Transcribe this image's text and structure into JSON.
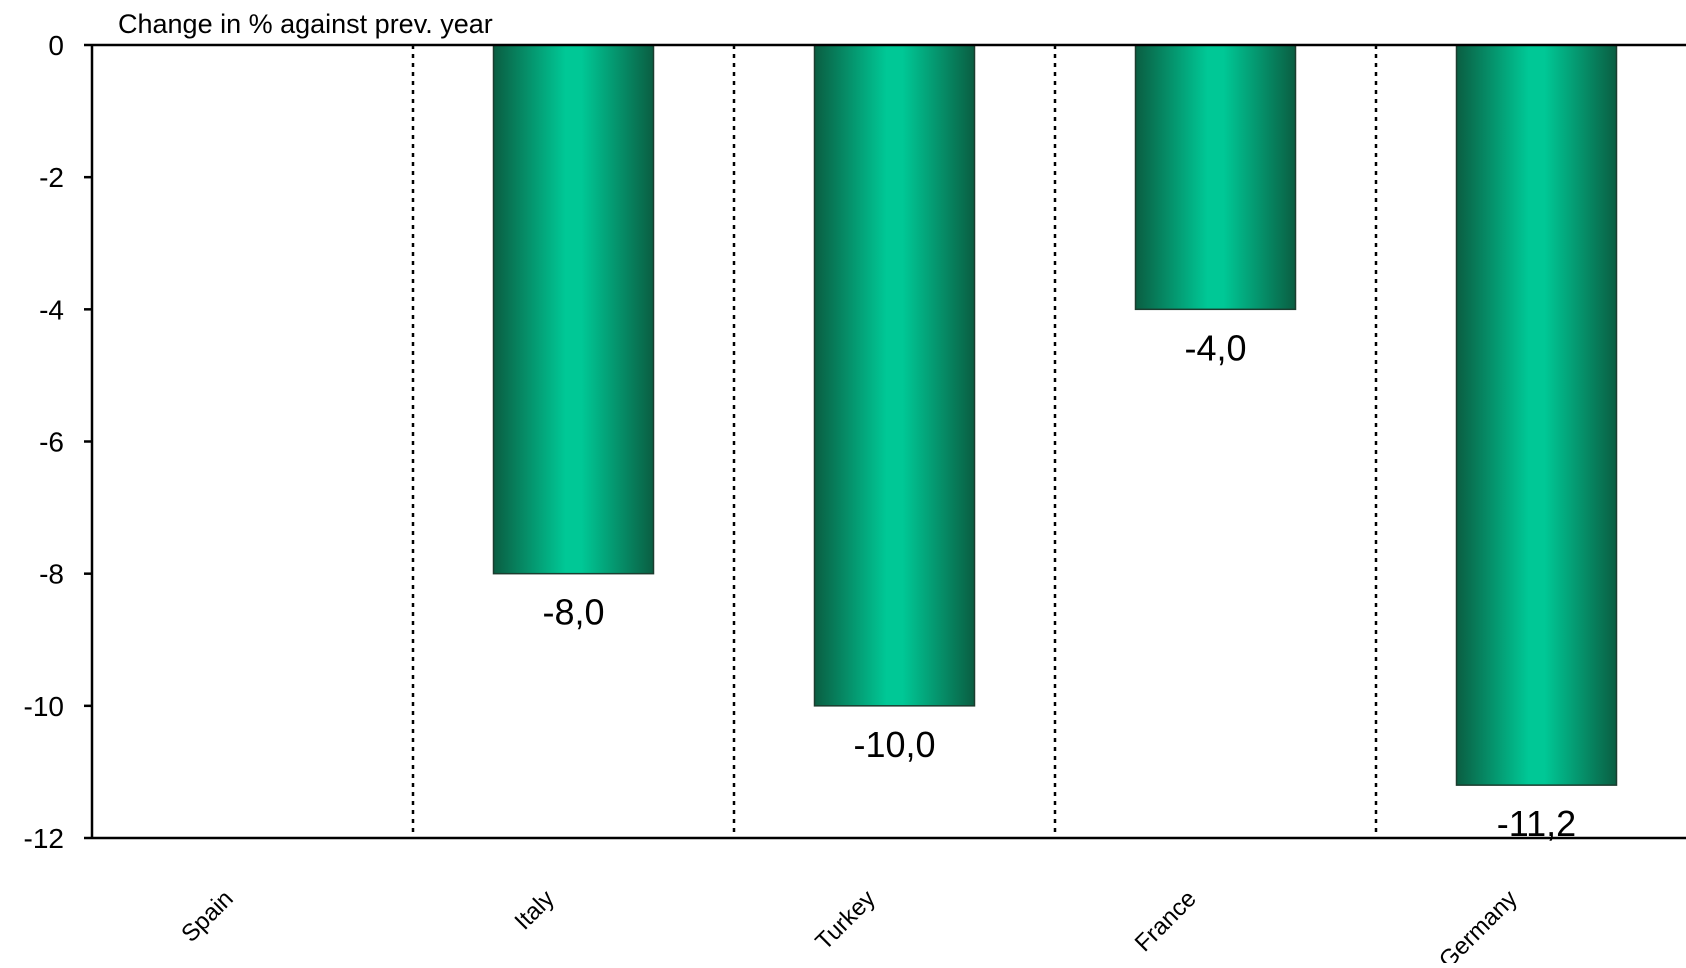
{
  "chart_data": {
    "type": "bar",
    "title": "",
    "ylabel": "Change in % against prev. year",
    "xlabel": "",
    "categories": [
      "Spain",
      "Italy",
      "Turkey",
      "France",
      "Germany"
    ],
    "series": [
      {
        "values": [
          0,
          -8.0,
          -10.0,
          -4.0,
          -11.2
        ]
      }
    ],
    "data_labels": [
      "",
      "-8,0",
      "-10,0",
      "-4,0",
      "-11,2"
    ],
    "ylim": [
      -12,
      0
    ],
    "yticks": [
      0,
      -2,
      -4,
      -6,
      -8,
      -10,
      -12
    ],
    "ytick_labels": [
      "0",
      "-2",
      "-4",
      "-6",
      "-8",
      "-10",
      "-12"
    ],
    "grid": "dotted vertical separators between categories",
    "legend": "none",
    "colors": {
      "bar_edge": "#0a5e42",
      "bar_center": "#00c896",
      "axis": "#000000"
    }
  }
}
